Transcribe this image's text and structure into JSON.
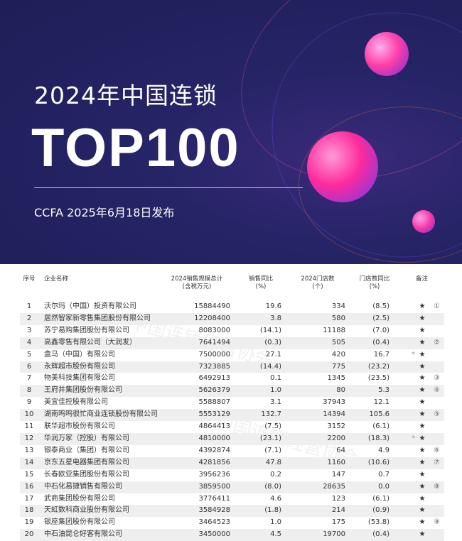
{
  "banner": {
    "title": "2024年中国连锁",
    "headline": "TOP100",
    "subtitle": "CCFA 2025年6月18日发布"
  },
  "watermark": "中国连锁经营协会",
  "table": {
    "headers": {
      "seq": "序号",
      "name": "企业名称",
      "sales": "2024销售规模总计",
      "sales_unit": "(含税万元)",
      "sales_yoy": "销售同比",
      "sales_yoy_unit": "(%)",
      "stores": "2024门店数",
      "stores_unit": "(个)",
      "stores_yoy": "门店数同比",
      "stores_yoy_unit": "(%)",
      "note": "备注"
    },
    "rows": [
      {
        "seq": "1",
        "name": "沃尔玛（中国）投资有限公司",
        "sales": "15884490",
        "yoy": "19.6",
        "stores": "334",
        "syoy": "(8.5)",
        "dot": "",
        "star": "★",
        "note": "①"
      },
      {
        "seq": "2",
        "name": "居然智家新零售集团股份有限公司",
        "sales": "12208400",
        "yoy": "3.8",
        "stores": "580",
        "syoy": "(2.5)",
        "dot": "",
        "star": "★",
        "note": ""
      },
      {
        "seq": "3",
        "name": "苏宁易购集团股份有限公司",
        "sales": "8083000",
        "yoy": "(14.1)",
        "stores": "11188",
        "syoy": "(7.0)",
        "dot": "",
        "star": "★",
        "note": ""
      },
      {
        "seq": "4",
        "name": "高鑫零售有限公司（大润发）",
        "sales": "7641494",
        "yoy": "(0.3)",
        "stores": "505",
        "syoy": "(0.4)",
        "dot": "",
        "star": "★",
        "note": "②"
      },
      {
        "seq": "5",
        "name": "盒马（中国）有限公司",
        "sales": "7500000",
        "yoy": "27.1",
        "stores": "420",
        "syoy": "16.7",
        "dot": "*",
        "star": "★",
        "note": ""
      },
      {
        "seq": "6",
        "name": "永辉超市股份有限公司",
        "sales": "7323885",
        "yoy": "(14.4)",
        "stores": "775",
        "syoy": "(23.2)",
        "dot": "",
        "star": "★",
        "note": ""
      },
      {
        "seq": "7",
        "name": "物美科技集团有限公司",
        "sales": "6492913",
        "yoy": "0.1",
        "stores": "1345",
        "syoy": "(23.5)",
        "dot": "",
        "star": "★",
        "note": "③"
      },
      {
        "seq": "8",
        "name": "王府井集团股份有限公司",
        "sales": "5626379",
        "yoy": "1.0",
        "stores": "80",
        "syoy": "5.3",
        "dot": "",
        "star": "★",
        "note": "④"
      },
      {
        "seq": "9",
        "name": "美宜佳控股有限公司",
        "sales": "5588807",
        "yoy": "3.1",
        "stores": "37943",
        "syoy": "12.1",
        "dot": "",
        "star": "★",
        "note": ""
      },
      {
        "seq": "10",
        "name": "湖南鸣鸣很忙商业连锁股份有限公司",
        "sales": "5553129",
        "yoy": "132.7",
        "stores": "14394",
        "syoy": "105.6",
        "dot": "",
        "star": "★",
        "note": "⑤"
      },
      {
        "seq": "11",
        "name": "联华超市股份有限公司",
        "sales": "4864413",
        "yoy": "(7.5)",
        "stores": "3152",
        "syoy": "(6.1)",
        "dot": "",
        "star": "★",
        "note": ""
      },
      {
        "seq": "12",
        "name": "华润万家（控股）有限公司",
        "sales": "4810000",
        "yoy": "(23.1)",
        "stores": "2200",
        "syoy": "(18.3)",
        "dot": "*",
        "star": "★",
        "note": ""
      },
      {
        "seq": "13",
        "name": "银泰商业（集团）有限公司",
        "sales": "4392874",
        "yoy": "(7.1)",
        "stores": "64",
        "syoy": "4.9",
        "dot": "",
        "star": "★",
        "note": "⑥"
      },
      {
        "seq": "14",
        "name": "京东五星电器集团有限公司",
        "sales": "4281856",
        "yoy": "47.8",
        "stores": "1160",
        "syoy": "(10.6)",
        "dot": "",
        "star": "★",
        "note": "⑦"
      },
      {
        "seq": "15",
        "name": "长春欧亚集团股份有限公司",
        "sales": "3956236",
        "yoy": "0.2",
        "stores": "147",
        "syoy": "0.7",
        "dot": "",
        "star": "★",
        "note": ""
      },
      {
        "seq": "16",
        "name": "中石化易捷销售有限公司",
        "sales": "3859500",
        "yoy": "(8.0)",
        "stores": "28635",
        "syoy": "0.0",
        "dot": "",
        "star": "★",
        "note": "⑧"
      },
      {
        "seq": "17",
        "name": "武商集团股份有限公司",
        "sales": "3776411",
        "yoy": "4.6",
        "stores": "123",
        "syoy": "(6.1)",
        "dot": "",
        "star": "★",
        "note": ""
      },
      {
        "seq": "18",
        "name": "天虹数科商业股份有限公司",
        "sales": "3584928",
        "yoy": "(1.8)",
        "stores": "214",
        "syoy": "(0.9)",
        "dot": "",
        "star": "★",
        "note": ""
      },
      {
        "seq": "19",
        "name": "银座集团股份有限公司",
        "sales": "3464523",
        "yoy": "1.0",
        "stores": "175",
        "syoy": "(53.8)",
        "dot": "",
        "star": "★",
        "note": "⑨"
      },
      {
        "seq": "20",
        "name": "中石油昆仑好客有限公司",
        "sales": "3450000",
        "yoy": "4.5",
        "stores": "19700",
        "syoy": "(0.4)",
        "dot": "",
        "star": "★",
        "note": ""
      }
    ]
  }
}
